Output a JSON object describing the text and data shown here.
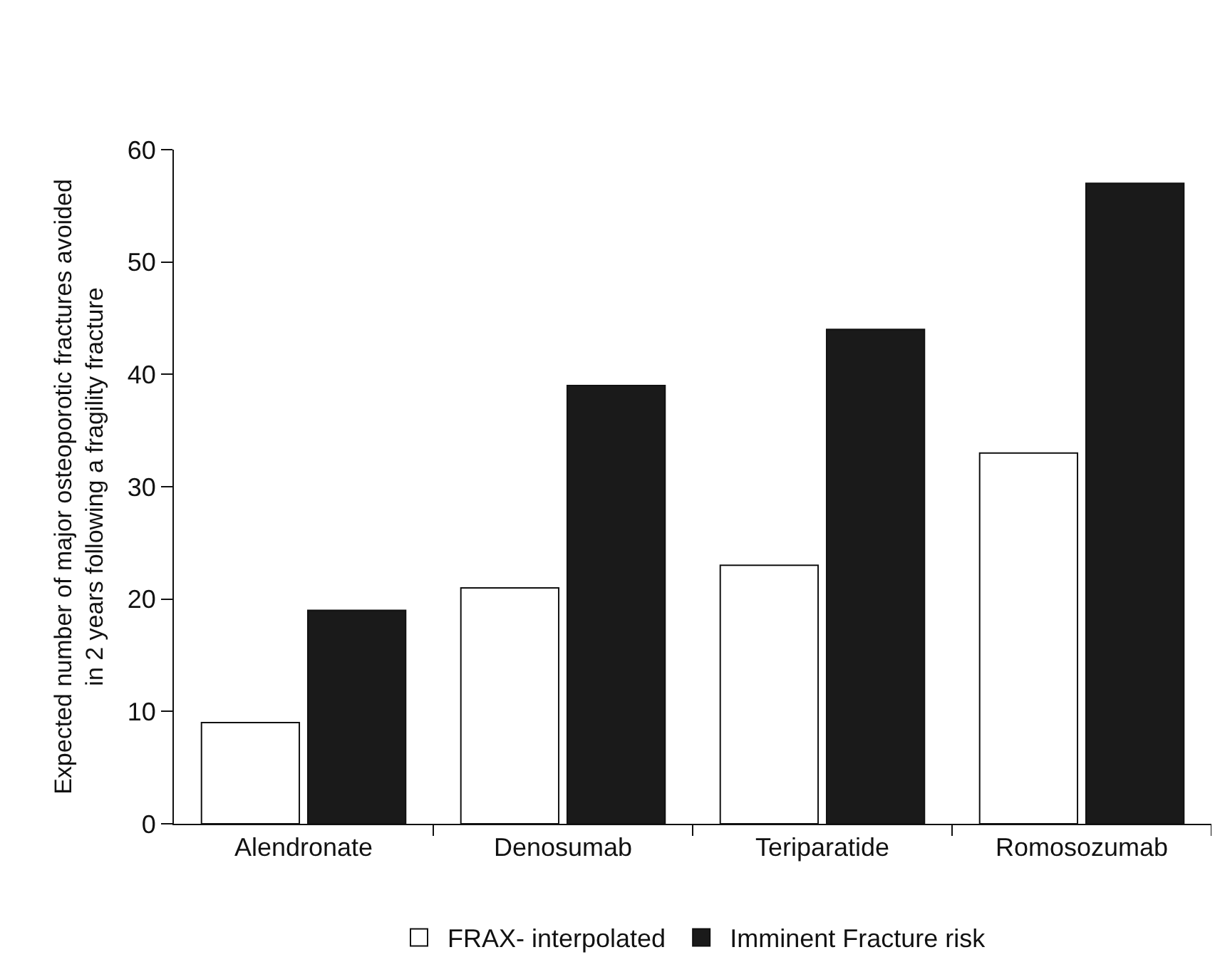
{
  "chart_data": {
    "type": "bar",
    "ylabel": "Expected number of major osteoporotic fractures avoided\nin 2 years following a fragility fracture",
    "categories": [
      "Alendronate",
      "Denosumab",
      "Teriparatide",
      "Romosozumab"
    ],
    "series": [
      {
        "name": "FRAX- interpolated",
        "color": "#ffffff",
        "values": [
          9,
          21,
          23,
          33
        ]
      },
      {
        "name": "Imminent Fracture risk",
        "color": "#1a1a1a",
        "values": [
          19,
          39,
          44,
          57
        ]
      }
    ],
    "ylim": [
      0,
      60
    ],
    "yticks": [
      0,
      10,
      20,
      30,
      40,
      50,
      60
    ],
    "grid": false,
    "legend": "bottom"
  }
}
